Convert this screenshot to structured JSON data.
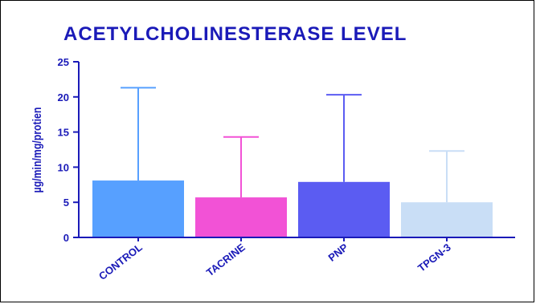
{
  "chart_data": {
    "type": "bar",
    "title": "ACETYLCHOLINESTERASE LEVEL",
    "xlabel": "",
    "ylabel": "µg/min/mg/protien",
    "ylim": [
      0,
      25
    ],
    "yticks": [
      0,
      5,
      10,
      15,
      20,
      25
    ],
    "grid": false,
    "categories": [
      "CONTROL",
      "TACRINE",
      "PNP",
      "TPGN-3"
    ],
    "series": [
      {
        "values": [
          8.1,
          5.7,
          7.9,
          5.0
        ],
        "error_upper": [
          21.3,
          14.3,
          20.3,
          12.3
        ],
        "colors": [
          "#57a0ff",
          "#f252d6",
          "#5b5cf2",
          "#c9def6"
        ]
      }
    ],
    "axis_color": "#1a1ab8"
  }
}
